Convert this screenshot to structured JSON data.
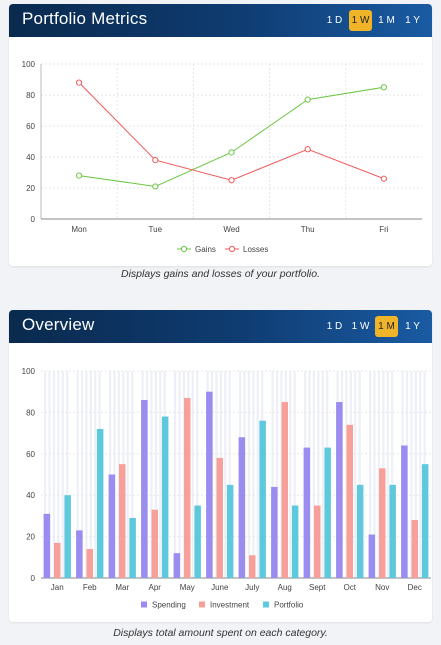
{
  "portfolio": {
    "title": "Portfolio Metrics",
    "ranges": [
      "1 D",
      "1 W",
      "1 M",
      "1 Y"
    ],
    "active_range": "1 W",
    "caption": "Displays gains and losses of your portfolio."
  },
  "overview": {
    "title": "Overview",
    "ranges": [
      "1 D",
      "1 W",
      "1 M",
      "1 Y"
    ],
    "active_range": "1 M",
    "caption": "Displays total amount spent on each category."
  },
  "colors": {
    "gains": "#6cc644",
    "losses": "#f05a5a",
    "spending": "#9b8cf0",
    "investment": "#f7a09a",
    "portfolio": "#5ec9dd",
    "accent": "#f0b429"
  },
  "chart_data": [
    {
      "type": "line",
      "categories": [
        "Mon",
        "Tue",
        "Wed",
        "Thu",
        "Fri"
      ],
      "series": [
        {
          "name": "Gains",
          "values": [
            28,
            21,
            43,
            77,
            85
          ]
        },
        {
          "name": "Losses",
          "values": [
            88,
            38,
            25,
            45,
            26
          ]
        }
      ],
      "ylim": [
        0,
        100
      ],
      "yticks": [
        0,
        20,
        40,
        60,
        80,
        100
      ],
      "grid": true,
      "legend": "bottom"
    },
    {
      "type": "bar",
      "categories": [
        "Jan",
        "Feb",
        "Mar",
        "Apr",
        "May",
        "June",
        "July",
        "Aug",
        "Sept",
        "Oct",
        "Nov",
        "Dec"
      ],
      "series": [
        {
          "name": "Spending",
          "values": [
            31,
            23,
            50,
            86,
            12,
            90,
            68,
            44,
            63,
            85,
            21,
            64
          ]
        },
        {
          "name": "Investment",
          "values": [
            17,
            14,
            55,
            33,
            87,
            58,
            11,
            85,
            35,
            74,
            53,
            28
          ]
        },
        {
          "name": "Portfolio",
          "values": [
            40,
            72,
            29,
            78,
            35,
            45,
            76,
            35,
            63,
            45,
            45,
            55
          ]
        }
      ],
      "ylim": [
        0,
        100
      ],
      "yticks": [
        0,
        20,
        40,
        60,
        80,
        100
      ],
      "grid": true,
      "legend": "bottom"
    }
  ]
}
